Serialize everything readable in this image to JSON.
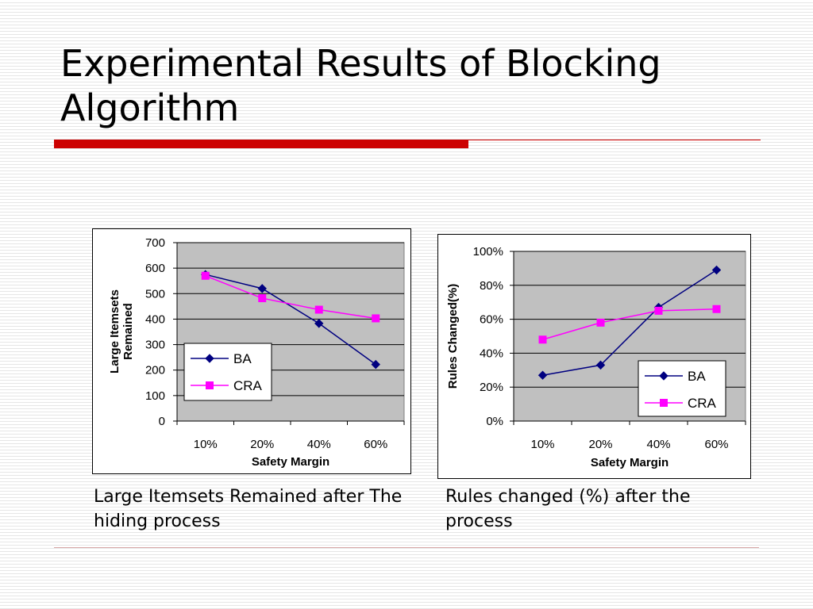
{
  "slide": {
    "title": "Experimental Results of Blocking Algorithm",
    "captions": [
      "Large Itemsets Remained after The hiding process",
      "Rules changed (%) after the process"
    ]
  },
  "colors": {
    "accent": "#cc0000",
    "ba": "#000080",
    "cra": "#ff00ff",
    "plot_bg": "#c0c0c0"
  },
  "chart_data": [
    {
      "type": "line",
      "categories": [
        "10%",
        "20%",
        "40%",
        "60%"
      ],
      "xlabel": "Safety Margin",
      "ylabel": "Large Itemsets Remained",
      "ylim": [
        0,
        700
      ],
      "yticks": [
        0,
        100,
        200,
        300,
        400,
        500,
        600,
        700
      ],
      "yticklabels": [
        "0",
        "100",
        "200",
        "300",
        "400",
        "500",
        "600",
        "700"
      ],
      "grid": true,
      "legend": "bottom-left",
      "series": [
        {
          "name": "BA",
          "values": [
            575,
            520,
            383,
            222
          ],
          "marker": "diamond"
        },
        {
          "name": "CRA",
          "values": [
            570,
            482,
            437,
            403
          ],
          "marker": "square"
        }
      ]
    },
    {
      "type": "line",
      "categories": [
        "10%",
        "20%",
        "40%",
        "60%"
      ],
      "xlabel": "Safety Margin",
      "ylabel": "Rules Changed(%)",
      "ylim": [
        0,
        100
      ],
      "yticks": [
        0,
        20,
        40,
        60,
        80,
        100
      ],
      "yticklabels": [
        "0%",
        "20%",
        "40%",
        "60%",
        "80%",
        "100%"
      ],
      "grid": true,
      "legend": "bottom-right",
      "series": [
        {
          "name": "BA",
          "values": [
            27,
            33,
            67,
            89
          ],
          "marker": "diamond"
        },
        {
          "name": "CRA",
          "values": [
            48,
            58,
            65,
            66
          ],
          "marker": "square"
        }
      ]
    }
  ]
}
